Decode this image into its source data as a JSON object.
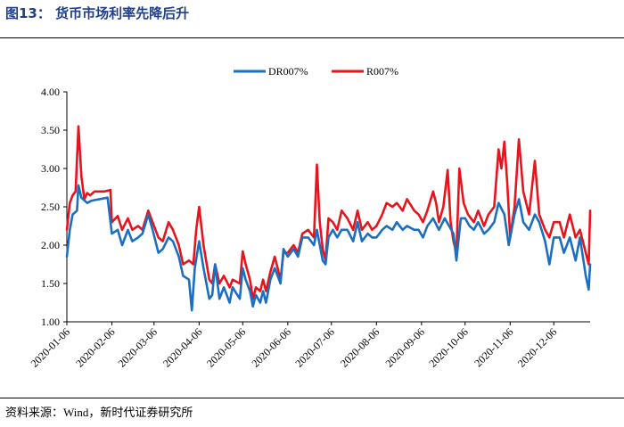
{
  "header": {
    "title": "图13：  货币市场利率先降后升"
  },
  "footer": {
    "source": "资料来源：Wind，新时代证券研究所"
  },
  "colors": {
    "title": "#1f3f8a",
    "series_dr007": "#1b6fc0",
    "series_r007": "#e8141c"
  },
  "chart_data": {
    "type": "line",
    "title": "",
    "xlabel": "",
    "ylabel": "",
    "ylim": [
      1.0,
      4.0
    ],
    "yticks": [
      "1.00",
      "1.50",
      "2.00",
      "2.50",
      "3.00",
      "3.50",
      "4.00"
    ],
    "xticks": [
      "2020-01-06",
      "2020-02-06",
      "2020-03-06",
      "2020-04-06",
      "2020-05-06",
      "2020-06-06",
      "2020-07-06",
      "2020-08-06",
      "2020-09-06",
      "2020-10-06",
      "2020-11-06",
      "2020-12-06"
    ],
    "xrange": [
      "2020-01-06",
      "2020-12-31"
    ],
    "legend": "top-center",
    "grid": false,
    "series": [
      {
        "name": "DR007%",
        "color": "#1b6fc0",
        "points": [
          [
            "2020-01-06",
            1.85
          ],
          [
            "2020-01-08",
            2.2
          ],
          [
            "2020-01-10",
            2.4
          ],
          [
            "2020-01-13",
            2.45
          ],
          [
            "2020-01-14",
            2.78
          ],
          [
            "2020-01-16",
            2.62
          ],
          [
            "2020-01-20",
            2.55
          ],
          [
            "2020-01-23",
            2.58
          ],
          [
            "2020-02-03",
            2.62
          ],
          [
            "2020-02-06",
            2.15
          ],
          [
            "2020-02-10",
            2.2
          ],
          [
            "2020-02-13",
            2.0
          ],
          [
            "2020-02-17",
            2.2
          ],
          [
            "2020-02-20",
            2.05
          ],
          [
            "2020-02-24",
            2.1
          ],
          [
            "2020-02-27",
            2.15
          ],
          [
            "2020-03-02",
            2.4
          ],
          [
            "2020-03-05",
            2.2
          ],
          [
            "2020-03-09",
            1.9
          ],
          [
            "2020-03-12",
            1.95
          ],
          [
            "2020-03-16",
            2.1
          ],
          [
            "2020-03-19",
            2.05
          ],
          [
            "2020-03-23",
            1.85
          ],
          [
            "2020-03-26",
            1.6
          ],
          [
            "2020-03-30",
            1.55
          ],
          [
            "2020-04-01",
            1.15
          ],
          [
            "2020-04-03",
            1.7
          ],
          [
            "2020-04-06",
            2.05
          ],
          [
            "2020-04-09",
            1.7
          ],
          [
            "2020-04-13",
            1.3
          ],
          [
            "2020-04-15",
            1.35
          ],
          [
            "2020-04-17",
            1.75
          ],
          [
            "2020-04-20",
            1.3
          ],
          [
            "2020-04-23",
            1.45
          ],
          [
            "2020-04-27",
            1.25
          ],
          [
            "2020-04-29",
            1.45
          ],
          [
            "2020-05-04",
            1.3
          ],
          [
            "2020-05-06",
            1.7
          ],
          [
            "2020-05-08",
            1.55
          ],
          [
            "2020-05-11",
            1.4
          ],
          [
            "2020-05-13",
            1.2
          ],
          [
            "2020-05-15",
            1.35
          ],
          [
            "2020-05-18",
            1.25
          ],
          [
            "2020-05-20",
            1.4
          ],
          [
            "2020-05-22",
            1.25
          ],
          [
            "2020-05-25",
            1.55
          ],
          [
            "2020-05-28",
            1.7
          ],
          [
            "2020-06-01",
            1.5
          ],
          [
            "2020-06-03",
            1.95
          ],
          [
            "2020-06-06",
            1.85
          ],
          [
            "2020-06-10",
            1.95
          ],
          [
            "2020-06-13",
            1.85
          ],
          [
            "2020-06-16",
            2.1
          ],
          [
            "2020-06-20",
            2.1
          ],
          [
            "2020-06-24",
            2.0
          ],
          [
            "2020-06-26",
            2.2
          ],
          [
            "2020-06-30",
            1.8
          ],
          [
            "2020-07-02",
            1.75
          ],
          [
            "2020-07-04",
            2.1
          ],
          [
            "2020-07-07",
            2.2
          ],
          [
            "2020-07-10",
            2.1
          ],
          [
            "2020-07-13",
            2.2
          ],
          [
            "2020-07-17",
            2.2
          ],
          [
            "2020-07-21",
            2.05
          ],
          [
            "2020-07-24",
            2.3
          ],
          [
            "2020-07-27",
            2.05
          ],
          [
            "2020-07-31",
            2.15
          ],
          [
            "2020-08-03",
            2.1
          ],
          [
            "2020-08-06",
            2.1
          ],
          [
            "2020-08-10",
            2.2
          ],
          [
            "2020-08-13",
            2.25
          ],
          [
            "2020-08-17",
            2.2
          ],
          [
            "2020-08-20",
            2.3
          ],
          [
            "2020-08-24",
            2.2
          ],
          [
            "2020-08-27",
            2.25
          ],
          [
            "2020-09-01",
            2.2
          ],
          [
            "2020-09-04",
            2.2
          ],
          [
            "2020-09-07",
            2.1
          ],
          [
            "2020-09-10",
            2.25
          ],
          [
            "2020-09-14",
            2.35
          ],
          [
            "2020-09-18",
            2.2
          ],
          [
            "2020-09-22",
            2.35
          ],
          [
            "2020-09-25",
            2.25
          ],
          [
            "2020-09-28",
            2.15
          ],
          [
            "2020-09-30",
            1.8
          ],
          [
            "2020-10-03",
            2.35
          ],
          [
            "2020-10-06",
            2.35
          ],
          [
            "2020-10-09",
            2.25
          ],
          [
            "2020-10-12",
            2.2
          ],
          [
            "2020-10-15",
            2.3
          ],
          [
            "2020-10-19",
            2.15
          ],
          [
            "2020-10-22",
            2.2
          ],
          [
            "2020-10-26",
            2.3
          ],
          [
            "2020-10-29",
            2.55
          ],
          [
            "2020-11-02",
            2.4
          ],
          [
            "2020-11-05",
            2.0
          ],
          [
            "2020-11-09",
            2.4
          ],
          [
            "2020-11-12",
            2.6
          ],
          [
            "2020-11-15",
            2.3
          ],
          [
            "2020-11-19",
            2.2
          ],
          [
            "2020-11-23",
            2.4
          ],
          [
            "2020-11-26",
            2.3
          ],
          [
            "2020-11-30",
            2.05
          ],
          [
            "2020-12-03",
            1.75
          ],
          [
            "2020-12-06",
            2.1
          ],
          [
            "2020-12-10",
            2.1
          ],
          [
            "2020-12-13",
            1.9
          ],
          [
            "2020-12-17",
            2.1
          ],
          [
            "2020-12-21",
            1.8
          ],
          [
            "2020-12-24",
            2.1
          ],
          [
            "2020-12-28",
            1.6
          ],
          [
            "2020-12-30",
            1.42
          ],
          [
            "2020-12-31",
            1.75
          ]
        ]
      },
      {
        "name": "R007%",
        "color": "#e8141c",
        "points": [
          [
            "2020-01-06",
            2.2
          ],
          [
            "2020-01-08",
            2.55
          ],
          [
            "2020-01-10",
            2.65
          ],
          [
            "2020-01-12",
            2.7
          ],
          [
            "2020-01-14",
            3.55
          ],
          [
            "2020-01-16",
            2.9
          ],
          [
            "2020-01-18",
            2.6
          ],
          [
            "2020-01-20",
            2.68
          ],
          [
            "2020-01-22",
            2.65
          ],
          [
            "2020-01-25",
            2.7
          ],
          [
            "2020-02-01",
            2.7
          ],
          [
            "2020-02-05",
            2.72
          ],
          [
            "2020-02-06",
            2.3
          ],
          [
            "2020-02-10",
            2.38
          ],
          [
            "2020-02-13",
            2.2
          ],
          [
            "2020-02-17",
            2.35
          ],
          [
            "2020-02-20",
            2.2
          ],
          [
            "2020-02-24",
            2.25
          ],
          [
            "2020-02-27",
            2.2
          ],
          [
            "2020-03-02",
            2.45
          ],
          [
            "2020-03-05",
            2.3
          ],
          [
            "2020-03-09",
            2.1
          ],
          [
            "2020-03-12",
            2.05
          ],
          [
            "2020-03-16",
            2.3
          ],
          [
            "2020-03-19",
            2.2
          ],
          [
            "2020-03-23",
            2.0
          ],
          [
            "2020-03-26",
            1.75
          ],
          [
            "2020-03-30",
            1.8
          ],
          [
            "2020-04-02",
            1.75
          ],
          [
            "2020-04-04",
            2.2
          ],
          [
            "2020-04-06",
            2.5
          ],
          [
            "2020-04-09",
            2.0
          ],
          [
            "2020-04-13",
            1.55
          ],
          [
            "2020-04-15",
            1.5
          ],
          [
            "2020-04-17",
            1.75
          ],
          [
            "2020-04-20",
            1.5
          ],
          [
            "2020-04-23",
            1.6
          ],
          [
            "2020-04-27",
            1.45
          ],
          [
            "2020-04-29",
            1.55
          ],
          [
            "2020-05-04",
            1.5
          ],
          [
            "2020-05-06",
            1.92
          ],
          [
            "2020-05-08",
            1.75
          ],
          [
            "2020-05-11",
            1.55
          ],
          [
            "2020-05-13",
            1.3
          ],
          [
            "2020-05-15",
            1.45
          ],
          [
            "2020-05-18",
            1.4
          ],
          [
            "2020-05-20",
            1.55
          ],
          [
            "2020-05-22",
            1.4
          ],
          [
            "2020-05-25",
            1.65
          ],
          [
            "2020-05-28",
            1.85
          ],
          [
            "2020-06-01",
            1.55
          ],
          [
            "2020-06-03",
            1.9
          ],
          [
            "2020-06-06",
            1.9
          ],
          [
            "2020-06-10",
            2.0
          ],
          [
            "2020-06-13",
            1.9
          ],
          [
            "2020-06-16",
            2.15
          ],
          [
            "2020-06-20",
            2.2
          ],
          [
            "2020-06-24",
            2.1
          ],
          [
            "2020-06-26",
            3.05
          ],
          [
            "2020-06-28",
            2.3
          ],
          [
            "2020-06-30",
            1.95
          ],
          [
            "2020-07-02",
            1.8
          ],
          [
            "2020-07-04",
            2.35
          ],
          [
            "2020-07-07",
            2.3
          ],
          [
            "2020-07-10",
            2.2
          ],
          [
            "2020-07-13",
            2.45
          ],
          [
            "2020-07-17",
            2.35
          ],
          [
            "2020-07-21",
            2.2
          ],
          [
            "2020-07-24",
            2.45
          ],
          [
            "2020-07-27",
            2.2
          ],
          [
            "2020-07-31",
            2.3
          ],
          [
            "2020-08-03",
            2.2
          ],
          [
            "2020-08-06",
            2.25
          ],
          [
            "2020-08-10",
            2.4
          ],
          [
            "2020-08-13",
            2.55
          ],
          [
            "2020-08-17",
            2.5
          ],
          [
            "2020-08-20",
            2.55
          ],
          [
            "2020-08-24",
            2.45
          ],
          [
            "2020-08-27",
            2.6
          ],
          [
            "2020-09-01",
            2.45
          ],
          [
            "2020-09-04",
            2.4
          ],
          [
            "2020-09-07",
            2.3
          ],
          [
            "2020-09-10",
            2.45
          ],
          [
            "2020-09-14",
            2.7
          ],
          [
            "2020-09-16",
            2.55
          ],
          [
            "2020-09-18",
            2.3
          ],
          [
            "2020-09-21",
            2.5
          ],
          [
            "2020-09-24",
            2.98
          ],
          [
            "2020-09-26",
            2.3
          ],
          [
            "2020-09-28",
            2.05
          ],
          [
            "2020-09-30",
            1.9
          ],
          [
            "2020-10-02",
            3.0
          ],
          [
            "2020-10-05",
            2.55
          ],
          [
            "2020-10-08",
            2.4
          ],
          [
            "2020-10-12",
            2.3
          ],
          [
            "2020-10-15",
            2.45
          ],
          [
            "2020-10-19",
            2.25
          ],
          [
            "2020-10-22",
            2.4
          ],
          [
            "2020-10-26",
            2.5
          ],
          [
            "2020-10-29",
            3.25
          ],
          [
            "2020-10-31",
            3.0
          ],
          [
            "2020-11-02",
            3.35
          ],
          [
            "2020-11-04",
            2.8
          ],
          [
            "2020-11-06",
            2.1
          ],
          [
            "2020-11-09",
            2.5
          ],
          [
            "2020-11-12",
            3.38
          ],
          [
            "2020-11-15",
            2.7
          ],
          [
            "2020-11-19",
            2.4
          ],
          [
            "2020-11-23",
            3.1
          ],
          [
            "2020-11-26",
            2.4
          ],
          [
            "2020-11-30",
            2.2
          ],
          [
            "2020-12-03",
            2.1
          ],
          [
            "2020-12-06",
            2.3
          ],
          [
            "2020-12-10",
            2.3
          ],
          [
            "2020-12-13",
            2.1
          ],
          [
            "2020-12-17",
            2.4
          ],
          [
            "2020-12-21",
            2.1
          ],
          [
            "2020-12-24",
            2.2
          ],
          [
            "2020-12-28",
            1.9
          ],
          [
            "2020-12-30",
            1.75
          ],
          [
            "2020-12-31",
            2.45
          ]
        ]
      }
    ]
  }
}
